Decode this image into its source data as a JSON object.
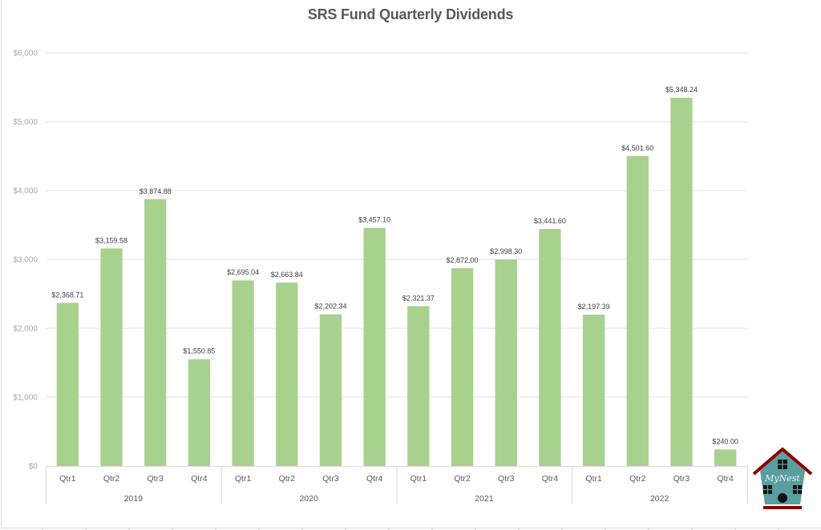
{
  "chart_data": {
    "type": "bar",
    "title": "SRS Fund Quarterly Dividends",
    "xlabel": "",
    "ylabel": "",
    "ylim": [
      0,
      6000
    ],
    "yticks": [
      0,
      1000,
      2000,
      3000,
      4000,
      5000,
      6000
    ],
    "ytick_labels": [
      "$0",
      "$1,000",
      "$2,000",
      "$3,000",
      "$4,000",
      "$5,000",
      "$6,000"
    ],
    "grid": true,
    "legend": "none",
    "bar_color": "#a9d18e",
    "groups": [
      {
        "label": "2019",
        "categories": [
          "Qtr1",
          "Qtr2",
          "Qtr3",
          "Qtr4"
        ],
        "values": [
          2368.71,
          3159.58,
          3874.88,
          1550.85
        ],
        "data_labels": [
          "$2,368.71",
          "$3,159.58",
          "$3,874.88",
          "$1,550.85"
        ]
      },
      {
        "label": "2020",
        "categories": [
          "Qtr1",
          "Qtr2",
          "Qtr3",
          "Qtr4"
        ],
        "values": [
          2695.04,
          2663.84,
          2202.34,
          3457.1
        ],
        "data_labels": [
          "$2,695.04",
          "$2,663.84",
          "$2,202.34",
          "$3,457.10"
        ]
      },
      {
        "label": "2021",
        "categories": [
          "Qtr1",
          "Qtr2",
          "Qtr3",
          "Qtr4"
        ],
        "values": [
          2321.37,
          2872.0,
          2998.3,
          3441.6
        ],
        "data_labels": [
          "$2,321.37",
          "$2,872.00",
          "$2,998.30",
          "$3,441.60"
        ]
      },
      {
        "label": "2022",
        "categories": [
          "Qtr1",
          "Qtr2",
          "Qtr3",
          "Qtr4"
        ],
        "values": [
          2197.39,
          4501.6,
          5348.24,
          240.0
        ],
        "data_labels": [
          "$2,197.39",
          "$4,501.60",
          "$5,348.24",
          "$240.00"
        ]
      }
    ]
  },
  "logo": {
    "text": "MyNest",
    "wall_color": "#5a9ea0",
    "roof_color": "#8b0000"
  }
}
